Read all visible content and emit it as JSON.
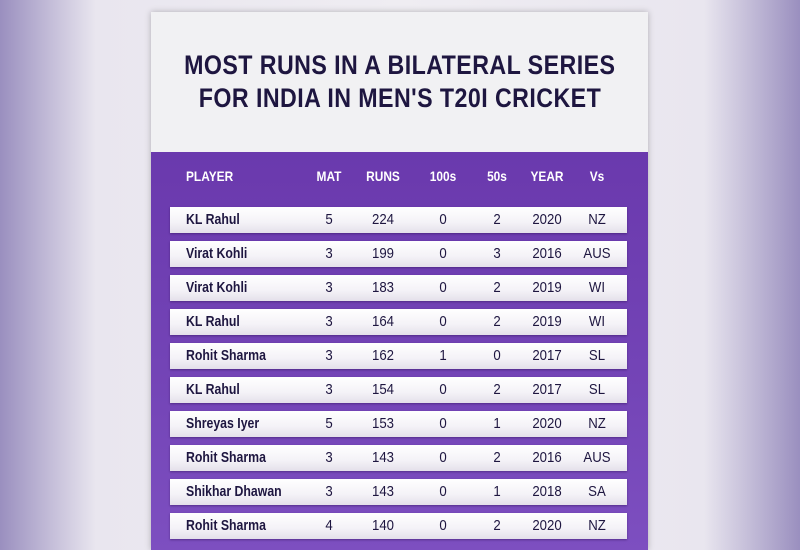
{
  "title": {
    "line1": "MOST RUNS IN A BILATERAL SERIES",
    "line2": "FOR INDIA IN MEN'S T20I CRICKET"
  },
  "chart_data": {
    "type": "table",
    "columns": [
      "PLAYER",
      "MAT",
      "RUNS",
      "100s",
      "50s",
      "YEAR",
      "Vs"
    ],
    "rows": [
      {
        "player": "KL Rahul",
        "mat": "5",
        "runs": "224",
        "hundreds": "0",
        "fifties": "2",
        "year": "2020",
        "vs": "NZ"
      },
      {
        "player": "Virat Kohli",
        "mat": "3",
        "runs": "199",
        "hundreds": "0",
        "fifties": "3",
        "year": "2016",
        "vs": "AUS"
      },
      {
        "player": "Virat Kohli",
        "mat": "3",
        "runs": "183",
        "hundreds": "0",
        "fifties": "2",
        "year": "2019",
        "vs": "WI"
      },
      {
        "player": "KL Rahul",
        "mat": "3",
        "runs": "164",
        "hundreds": "0",
        "fifties": "2",
        "year": "2019",
        "vs": "WI"
      },
      {
        "player": "Rohit Sharma",
        "mat": "3",
        "runs": "162",
        "hundreds": "1",
        "fifties": "0",
        "year": "2017",
        "vs": "SL"
      },
      {
        "player": "KL Rahul",
        "mat": "3",
        "runs": "154",
        "hundreds": "0",
        "fifties": "2",
        "year": "2017",
        "vs": "SL"
      },
      {
        "player": "Shreyas Iyer",
        "mat": "5",
        "runs": "153",
        "hundreds": "0",
        "fifties": "1",
        "year": "2020",
        "vs": "NZ"
      },
      {
        "player": "Rohit Sharma",
        "mat": "3",
        "runs": "143",
        "hundreds": "0",
        "fifties": "2",
        "year": "2016",
        "vs": "AUS"
      },
      {
        "player": "Shikhar Dhawan",
        "mat": "3",
        "runs": "143",
        "hundreds": "0",
        "fifties": "1",
        "year": "2018",
        "vs": "SA"
      },
      {
        "player": "Rohit Sharma",
        "mat": "4",
        "runs": "140",
        "hundreds": "0",
        "fifties": "2",
        "year": "2020",
        "vs": "NZ"
      }
    ]
  },
  "colors": {
    "header_bg": "#f1f1f3",
    "title_text": "#1e1640",
    "table_bg": "#6f3fb0",
    "row_bg": "#ffffff",
    "cell_text": "#1e1640",
    "column_header_text": "#ffffff"
  }
}
